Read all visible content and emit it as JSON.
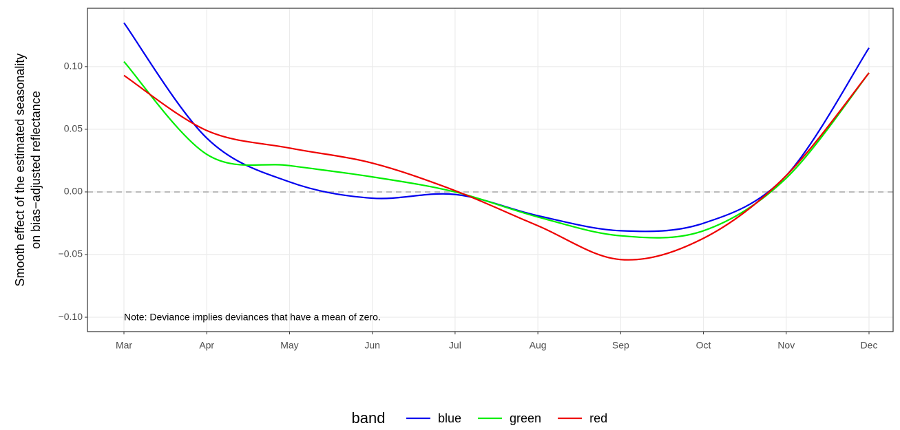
{
  "chart_data": {
    "type": "line",
    "y_label": [
      "Smooth effect of the estimated seasonality",
      "on bias−adjusted reflectance"
    ],
    "annotation": "Note: Deviance implies deviances that have a mean of zero.",
    "categories": [
      "Mar",
      "Apr",
      "May",
      "Jun",
      "Jul",
      "Aug",
      "Sep",
      "Oct",
      "Nov",
      "Dec"
    ],
    "series": [
      {
        "name": "blue",
        "color": "#0000ee",
        "values": [
          0.135,
          0.043,
          0.008,
          -0.005,
          -0.002,
          -0.019,
          -0.031,
          -0.025,
          0.013,
          0.115
        ]
      },
      {
        "name": "green",
        "color": "#00ee00",
        "values": [
          0.104,
          0.03,
          0.021,
          0.012,
          0.0,
          -0.02,
          -0.035,
          -0.031,
          0.011,
          0.095
        ]
      },
      {
        "name": "red",
        "color": "#ee0000",
        "values": [
          0.093,
          0.049,
          0.035,
          0.023,
          0.001,
          -0.027,
          -0.054,
          -0.037,
          0.013,
          0.095
        ]
      }
    ],
    "legend_title": "band",
    "legend_position": "bottom",
    "ylim": [
      -0.1115,
      0.1466
    ],
    "yticks": [
      {
        "value": -0.1,
        "label": "−0.10"
      },
      {
        "value": -0.05,
        "label": "−0.05"
      },
      {
        "value": 0,
        "label": "0.00"
      },
      {
        "value": 0.05,
        "label": "0.05"
      },
      {
        "value": 0.1,
        "label": "0.10"
      }
    ],
    "hline": 0,
    "grid": true
  }
}
